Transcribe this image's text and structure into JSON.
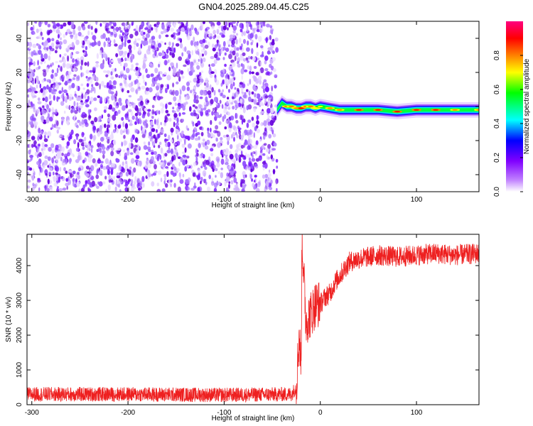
{
  "title": "GN04.2025.289.04.45.C25",
  "chart_data": [
    {
      "type": "heatmap",
      "xlabel": "Height of straight line (km)",
      "ylabel": "Frequency (Hz)",
      "xlim": [
        -305,
        165
      ],
      "ylim": [
        -50,
        50
      ],
      "x_ticks": [
        -300,
        -200,
        -100,
        0,
        100
      ],
      "y_ticks": [
        -40,
        -20,
        0,
        20,
        40
      ],
      "x_tick_labels": [
        "-300",
        "-200",
        "-100",
        "0",
        "100"
      ],
      "y_tick_labels": [
        "-40",
        "-20",
        "0",
        "20",
        "40"
      ],
      "noise_region_x": [
        -305,
        -45
      ],
      "signal_region_x": [
        -45,
        165
      ],
      "signal_trace": {
        "x": [
          -45,
          -40,
          -35,
          -30,
          -25,
          -20,
          -15,
          -10,
          -5,
          0,
          10,
          20,
          40,
          60,
          80,
          100,
          120,
          140,
          165
        ],
        "frequency": [
          -2,
          2,
          0,
          0,
          -1,
          -1,
          0,
          0,
          -1,
          0,
          -1,
          -2,
          -2,
          -2,
          -3,
          -2,
          -2,
          -2,
          -2
        ],
        "amplitude": [
          0.4,
          0.65,
          0.8,
          0.85,
          0.85,
          0.9,
          0.85,
          0.8,
          0.75,
          0.7,
          0.8,
          0.85,
          0.9,
          0.9,
          0.95,
          0.9,
          0.9,
          0.85,
          0.8
        ]
      },
      "colorbar": {
        "label": "Normalized spectral amplitude",
        "range": [
          0,
          1
        ],
        "ticks": [
          0.0,
          0.2,
          0.4,
          0.6,
          0.8
        ],
        "tick_labels": [
          "0.0",
          "0.2",
          "0.4",
          "0.6",
          "0.8"
        ],
        "colors": [
          "#ffffff",
          "#8000ff",
          "#0000ff",
          "#00ffff",
          "#00ff00",
          "#ffff00",
          "#ff8000",
          "#ff0000",
          "#ff0080"
        ]
      },
      "grid": false,
      "legend": "none"
    },
    {
      "type": "line",
      "xlabel": "Height of straight line (km)",
      "ylabel": "SNR (10 * v/v)",
      "xlim": [
        -305,
        165
      ],
      "ylim": [
        0,
        4900
      ],
      "x_ticks": [
        -300,
        -200,
        -100,
        0,
        100
      ],
      "y_ticks": [
        0,
        1000,
        2000,
        3000,
        4000
      ],
      "x_tick_labels": [
        "-300",
        "-200",
        "-100",
        "0",
        "100"
      ],
      "y_tick_labels": [
        "0",
        "1000",
        "2000",
        "3000",
        "4000"
      ],
      "series": [
        {
          "color": "#ff0000",
          "x": [
            -305,
            -200,
            -100,
            -30,
            -25,
            -22,
            -20,
            -19,
            -15,
            -10,
            -5,
            0,
            5,
            10,
            15,
            20,
            25,
            30,
            40,
            60,
            80,
            100,
            120,
            140,
            165
          ],
          "y": [
            300,
            300,
            280,
            300,
            500,
            2000,
            1100,
            4800,
            2400,
            2600,
            2900,
            2900,
            3100,
            3200,
            3500,
            3700,
            3900,
            4100,
            4200,
            4300,
            4250,
            4300,
            4350,
            4300,
            4350
          ]
        }
      ],
      "grid": false,
      "legend": "none"
    }
  ]
}
